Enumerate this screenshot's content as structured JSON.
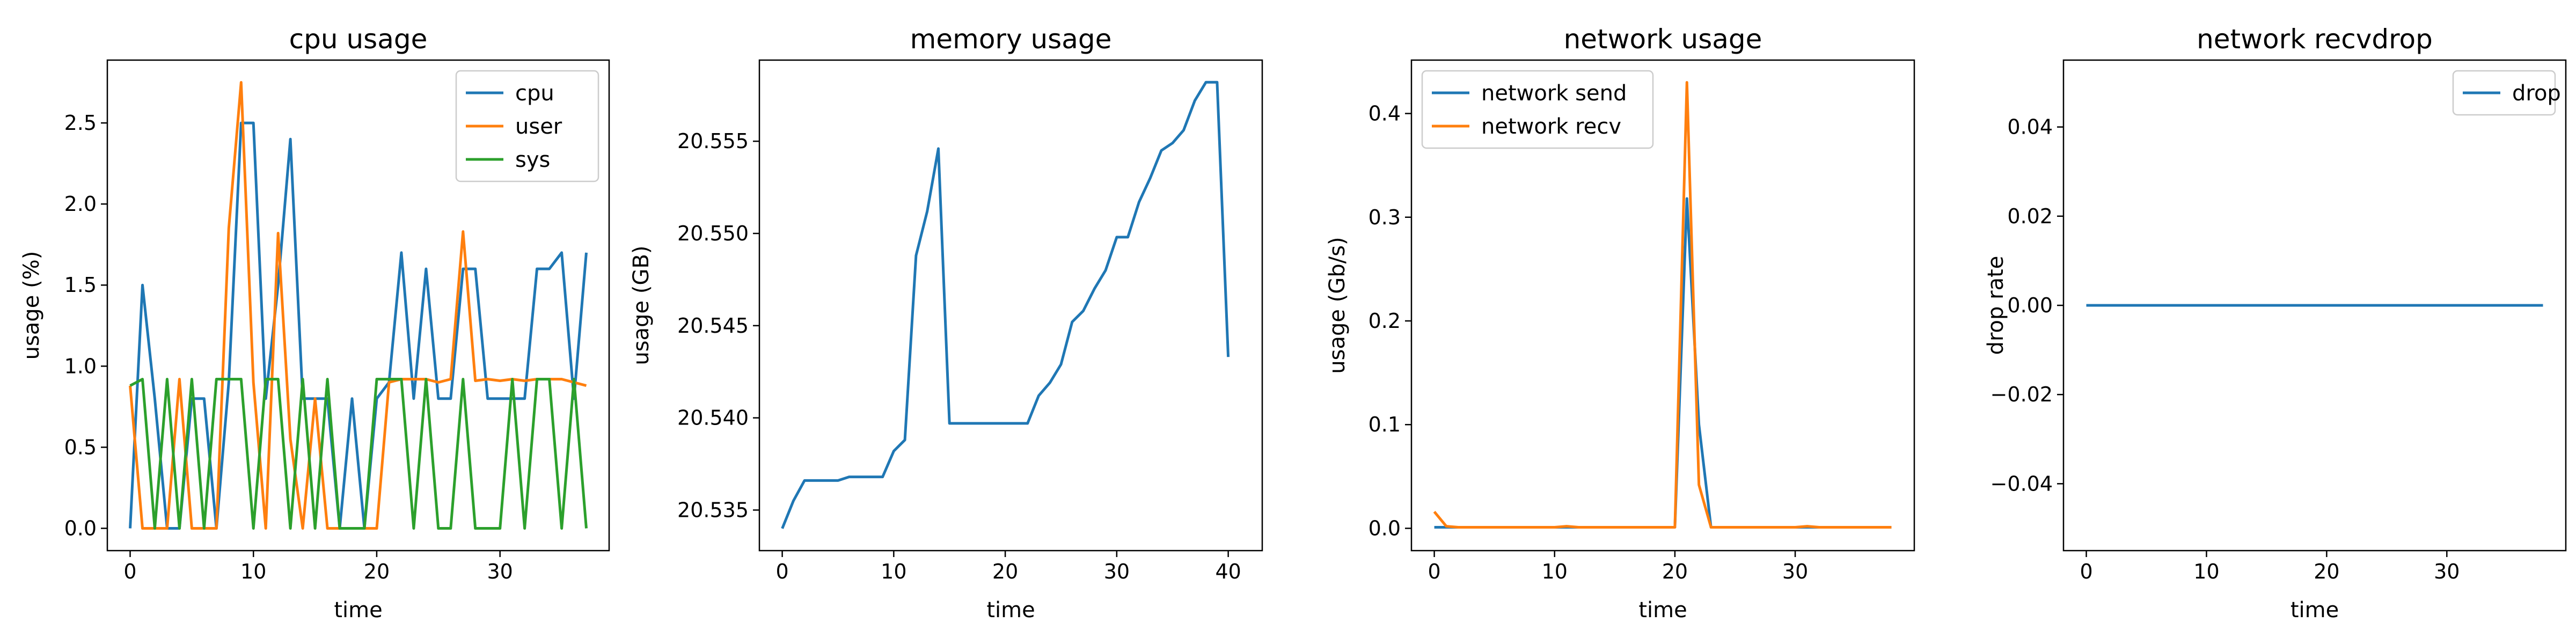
{
  "chart_data": [
    {
      "type": "line",
      "title": "cpu usage",
      "xlabel": "time",
      "ylabel": "usage (%)",
      "xlim": [
        -1.85,
        38.85
      ],
      "ylim": [
        -0.1375,
        2.8875
      ],
      "xticks": [
        0,
        10,
        20,
        30
      ],
      "yticks": [
        0.0,
        0.5,
        1.0,
        1.5,
        2.0,
        2.5
      ],
      "ytick_labels": [
        "0.0",
        "0.5",
        "1.0",
        "1.5",
        "2.0",
        "2.5"
      ],
      "legend_position": "upper right",
      "x": [
        0,
        1,
        2,
        3,
        4,
        5,
        6,
        7,
        8,
        9,
        10,
        11,
        12,
        13,
        14,
        15,
        16,
        17,
        18,
        19,
        20,
        21,
        22,
        23,
        24,
        25,
        26,
        27,
        28,
        29,
        30,
        31,
        32,
        33,
        34,
        35,
        36,
        37
      ],
      "series": [
        {
          "name": "cpu",
          "color": "#1f77b4",
          "values": [
            0.0,
            1.5,
            0.8,
            0.0,
            0.0,
            0.8,
            0.8,
            0.0,
            0.9,
            2.5,
            2.5,
            0.8,
            1.5,
            2.4,
            0.8,
            0.8,
            0.8,
            0.0,
            0.8,
            0.0,
            0.8,
            0.9,
            1.7,
            0.8,
            1.6,
            0.8,
            0.8,
            1.6,
            1.6,
            0.8,
            0.8,
            0.8,
            0.8,
            1.6,
            1.6,
            1.7,
            0.8,
            1.7
          ]
        },
        {
          "name": "user",
          "color": "#ff7f0e",
          "values": [
            0.88,
            0.0,
            0.0,
            0.0,
            0.92,
            0.0,
            0.0,
            0.0,
            1.85,
            2.75,
            0.9,
            0.0,
            1.82,
            0.55,
            0.0,
            0.8,
            0.0,
            0.0,
            0.0,
            0.0,
            0.0,
            0.9,
            0.92,
            0.92,
            0.92,
            0.9,
            0.92,
            1.83,
            0.91,
            0.92,
            0.91,
            0.92,
            0.91,
            0.92,
            0.92,
            0.92,
            0.9,
            0.88
          ]
        },
        {
          "name": "sys",
          "color": "#2ca02c",
          "values": [
            0.88,
            0.92,
            0.0,
            0.92,
            0.0,
            0.92,
            0.0,
            0.92,
            0.92,
            0.92,
            0.0,
            0.92,
            0.92,
            0.0,
            0.92,
            0.0,
            0.92,
            0.0,
            0.0,
            0.0,
            0.92,
            0.92,
            0.92,
            0.0,
            0.92,
            0.0,
            0.0,
            0.92,
            0.0,
            0.0,
            0.0,
            0.92,
            0.0,
            0.92,
            0.92,
            0.0,
            0.92,
            0.0
          ]
        }
      ]
    },
    {
      "type": "line",
      "title": "memory usage",
      "xlabel": "time",
      "ylabel": "usage (GB)",
      "xlim": [
        -2.05,
        43.05
      ],
      "ylim": [
        20.5328,
        20.5594
      ],
      "xticks": [
        0,
        10,
        20,
        30,
        40
      ],
      "yticks": [
        20.535,
        20.54,
        20.545,
        20.55,
        20.555
      ],
      "ytick_labels": [
        "20.535",
        "20.540",
        "20.545",
        "20.550",
        "20.555"
      ],
      "x": [
        0,
        1,
        2,
        3,
        4,
        5,
        6,
        7,
        8,
        9,
        10,
        11,
        12,
        13,
        14,
        15,
        16,
        17,
        18,
        19,
        20,
        21,
        22,
        23,
        24,
        25,
        26,
        27,
        28,
        29,
        30,
        31,
        32,
        33,
        34,
        35,
        36,
        37,
        38,
        39,
        40
      ],
      "series": [
        {
          "name": "",
          "color": "#1f77b4",
          "values": [
            20.534,
            20.5355,
            20.5366,
            20.5366,
            20.5366,
            20.5366,
            20.5368,
            20.5368,
            20.5368,
            20.5368,
            20.5382,
            20.5388,
            20.5488,
            20.5512,
            20.5546,
            20.5397,
            20.5397,
            20.5397,
            20.5397,
            20.5397,
            20.5397,
            20.5397,
            20.5397,
            20.5412,
            20.5419,
            20.5429,
            20.5452,
            20.5458,
            20.547,
            20.548,
            20.5498,
            20.5498,
            20.5517,
            20.553,
            20.5545,
            20.5549,
            20.5556,
            20.5572,
            20.5582,
            20.5582,
            20.5433
          ]
        }
      ]
    },
    {
      "type": "line",
      "title": "network usage",
      "xlabel": "time",
      "ylabel": "usage (Gb/s)",
      "xlim": [
        -1.9,
        39.9
      ],
      "ylim": [
        -0.0215,
        0.4515
      ],
      "xticks": [
        0,
        10,
        20,
        30
      ],
      "yticks": [
        0.0,
        0.1,
        0.2,
        0.3,
        0.4
      ],
      "ytick_labels": [
        "0.0",
        "0.1",
        "0.2",
        "0.3",
        "0.4"
      ],
      "legend_position": "upper left",
      "x": [
        0,
        1,
        2,
        3,
        4,
        5,
        6,
        7,
        8,
        9,
        10,
        11,
        12,
        13,
        14,
        15,
        16,
        17,
        18,
        19,
        20,
        21,
        22,
        23,
        24,
        25,
        26,
        27,
        28,
        29,
        30,
        31,
        32,
        33,
        34,
        35,
        36,
        37,
        38
      ],
      "series": [
        {
          "name": "network send",
          "color": "#1f77b4",
          "values": [
            0.001,
            0.001,
            0.001,
            0.001,
            0.001,
            0.001,
            0.001,
            0.001,
            0.001,
            0.001,
            0.001,
            0.001,
            0.001,
            0.001,
            0.001,
            0.001,
            0.001,
            0.001,
            0.001,
            0.001,
            0.001,
            0.318,
            0.1,
            0.001,
            0.001,
            0.001,
            0.001,
            0.001,
            0.001,
            0.001,
            0.001,
            0.001,
            0.001,
            0.001,
            0.001,
            0.001,
            0.001,
            0.001,
            0.001
          ]
        },
        {
          "name": "network recv",
          "color": "#ff7f0e",
          "values": [
            0.016,
            0.002,
            0.001,
            0.001,
            0.001,
            0.001,
            0.001,
            0.001,
            0.001,
            0.001,
            0.001,
            0.002,
            0.001,
            0.001,
            0.001,
            0.001,
            0.001,
            0.001,
            0.001,
            0.001,
            0.001,
            0.43,
            0.042,
            0.001,
            0.001,
            0.001,
            0.001,
            0.001,
            0.001,
            0.001,
            0.001,
            0.002,
            0.001,
            0.001,
            0.001,
            0.001,
            0.001,
            0.001,
            0.001
          ]
        }
      ]
    },
    {
      "type": "line",
      "title": "network recvdrop",
      "xlabel": "time",
      "ylabel": "drop rate",
      "xlim": [
        -1.9,
        39.9
      ],
      "ylim": [
        -0.055,
        0.055
      ],
      "xticks": [
        0,
        10,
        20,
        30
      ],
      "yticks": [
        -0.04,
        -0.02,
        0.0,
        0.02,
        0.04
      ],
      "ytick_labels": [
        "−0.04",
        "−0.02",
        "0.00",
        "0.02",
        "0.04"
      ],
      "legend_position": "upper right",
      "x": [
        0,
        1,
        2,
        3,
        4,
        5,
        6,
        7,
        8,
        9,
        10,
        11,
        12,
        13,
        14,
        15,
        16,
        17,
        18,
        19,
        20,
        21,
        22,
        23,
        24,
        25,
        26,
        27,
        28,
        29,
        30,
        31,
        32,
        33,
        34,
        35,
        36,
        37,
        38
      ],
      "series": [
        {
          "name": "drop",
          "color": "#1f77b4",
          "values": [
            0,
            0,
            0,
            0,
            0,
            0,
            0,
            0,
            0,
            0,
            0,
            0,
            0,
            0,
            0,
            0,
            0,
            0,
            0,
            0,
            0,
            0,
            0,
            0,
            0,
            0,
            0,
            0,
            0,
            0,
            0,
            0,
            0,
            0,
            0,
            0,
            0,
            0,
            0
          ]
        }
      ]
    }
  ]
}
